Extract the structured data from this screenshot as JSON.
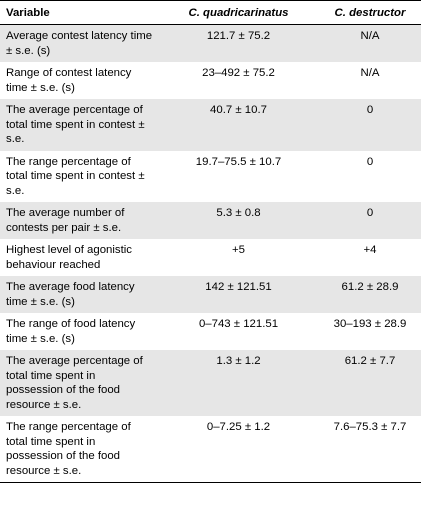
{
  "table": {
    "headers": [
      "Variable",
      "C. quadricarinatus",
      "C. destructor"
    ],
    "rows": [
      {
        "variable": "Average contest latency time ± s.e. (s)",
        "quadricarinatus": "121.7 ± 75.2",
        "destructor": "N/A"
      },
      {
        "variable": "Range of contest latency time ± s.e. (s)",
        "quadricarinatus": "23–492 ± 75.2",
        "destructor": "N/A"
      },
      {
        "variable": "The average percentage of total time spent in contest ± s.e.",
        "quadricarinatus": "40.7 ± 10.7",
        "destructor": "0"
      },
      {
        "variable": "The range percentage of total time spent in contest ± s.e.",
        "quadricarinatus": "19.7–75.5 ± 10.7",
        "destructor": "0"
      },
      {
        "variable": "The average number of contests per pair ± s.e.",
        "quadricarinatus": "5.3 ± 0.8",
        "destructor": "0"
      },
      {
        "variable": "Highest level of agonistic behaviour reached",
        "quadricarinatus": "+5",
        "destructor": "+4"
      },
      {
        "variable": "The average food latency time ± s.e. (s)",
        "quadricarinatus": "142 ± 121.51",
        "destructor": "61.2 ± 28.9"
      },
      {
        "variable": "The range of food latency time ± s.e. (s)",
        "quadricarinatus": "0–743 ± 121.51",
        "destructor": "30–193 ± 28.9"
      },
      {
        "variable": "The average percentage of total time spent in possession of the food resource ± s.e.",
        "quadricarinatus": "1.3 ± 1.2",
        "destructor": "61.2 ± 7.7"
      },
      {
        "variable": "The range percentage of total time spent in possession of the food resource ± s.e.",
        "quadricarinatus": "0–7.25 ± 1.2",
        "destructor": "7.6–75.3 ± 7.7"
      }
    ],
    "row_shading": "alternate-gray",
    "shade_color": "#e6e6e6"
  }
}
